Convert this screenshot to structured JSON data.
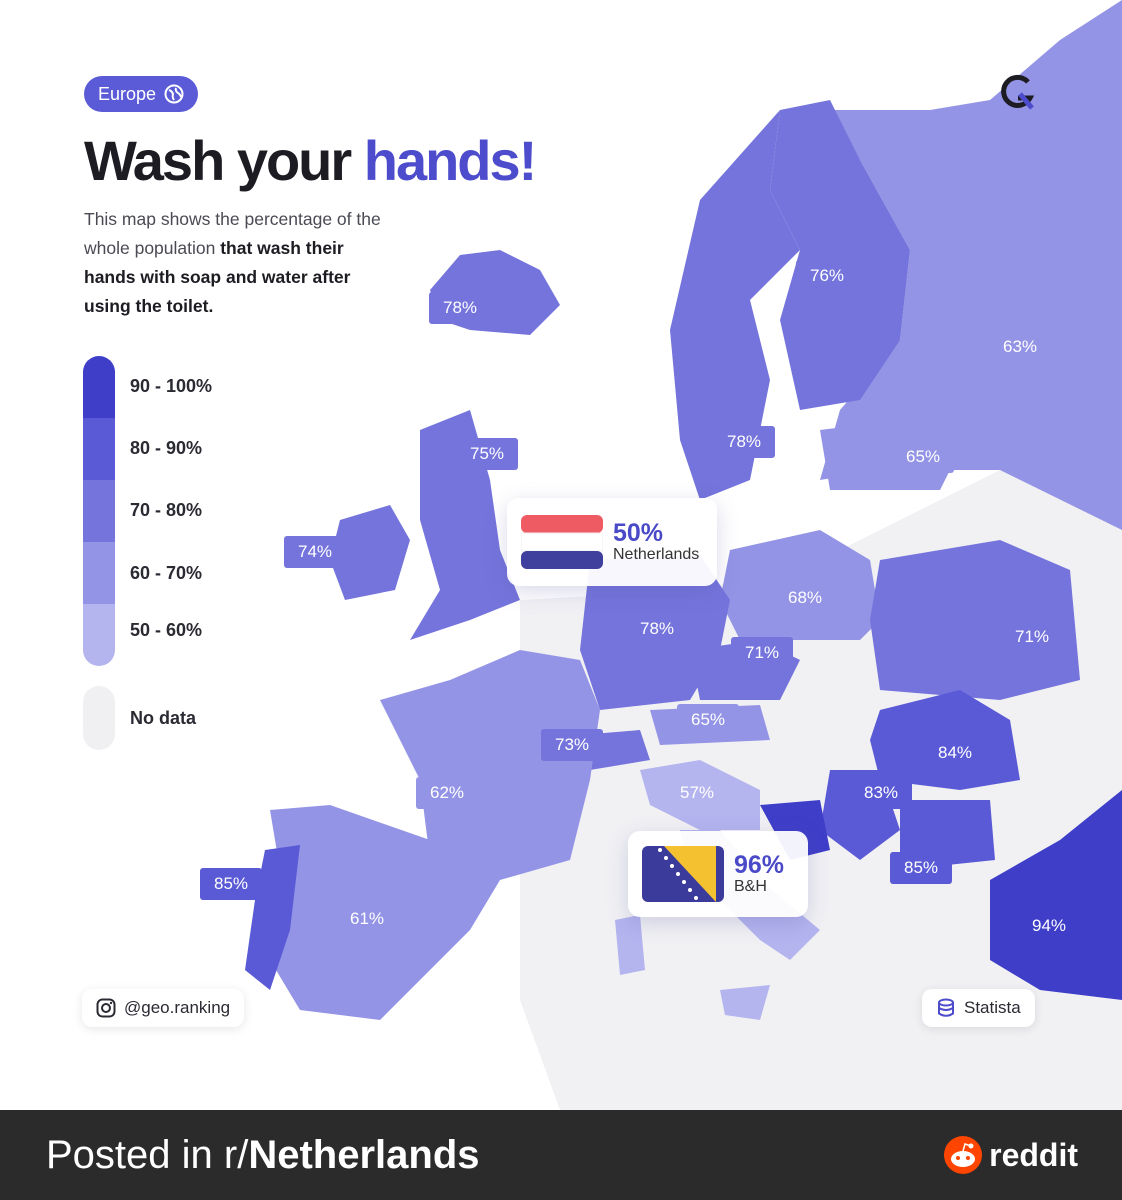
{
  "header": {
    "region_pill": "Europe",
    "globe_icon": "globe-icon",
    "title_part1": "Wash your",
    "title_part2": "hands!",
    "desc_1": "This map shows the percentage of the whole population",
    "desc_bold": "that wash their hands with soap and water after using the toilet."
  },
  "legend": {
    "colors": [
      "#3e3ec9",
      "#5a5ad6",
      "#7474dc",
      "#9494e6",
      "#b4b4ef"
    ],
    "nodata_color": "#f0f0f3",
    "labels": [
      "90 - 100%",
      "80 - 90%",
      "70 - 80%",
      "60 - 70%",
      "50 - 60%",
      "No data"
    ]
  },
  "countries": [
    {
      "name": "Iceland",
      "value": "78%"
    },
    {
      "name": "Finland",
      "value": "76%"
    },
    {
      "name": "Russia",
      "value": "63%"
    },
    {
      "name": "Sweden",
      "value": "78%"
    },
    {
      "name": "Baltics",
      "value": "65%"
    },
    {
      "name": "United Kingdom",
      "value": "75%"
    },
    {
      "name": "Ireland",
      "value": "74%"
    },
    {
      "name": "Poland",
      "value": "68%"
    },
    {
      "name": "Germany",
      "value": "78%"
    },
    {
      "name": "Czechia",
      "value": "71%"
    },
    {
      "name": "Ukraine",
      "value": "71%"
    },
    {
      "name": "Austria",
      "value": "65%"
    },
    {
      "name": "Switzerland",
      "value": "73%"
    },
    {
      "name": "Romania",
      "value": "84%"
    },
    {
      "name": "France",
      "value": "62%"
    },
    {
      "name": "Slovenia/Croatia",
      "value": "57%"
    },
    {
      "name": "Serbia",
      "value": "83%"
    },
    {
      "name": "Portugal",
      "value": "85%"
    },
    {
      "name": "Bulgaria",
      "value": "85%"
    },
    {
      "name": "Spain",
      "value": "61%"
    },
    {
      "name": "Turkey",
      "value": "94%"
    }
  ],
  "callouts": {
    "netherlands": {
      "value": "50%",
      "name": "Netherlands",
      "flag": "netherlands-flag-icon"
    },
    "bosnia": {
      "value": "96%",
      "name": "B&H",
      "flag": "bosnia-flag-icon"
    }
  },
  "credits": {
    "instagram": "@geo.ranking",
    "instagram_icon": "instagram-icon",
    "source": "Statista",
    "source_icon": "database-icon"
  },
  "footer": {
    "posted_prefix": "Posted in r/",
    "subreddit": "Netherlands",
    "brand": "reddit",
    "brand_icon": "reddit-alien-icon",
    "bg_color": "#2b2b2b"
  }
}
